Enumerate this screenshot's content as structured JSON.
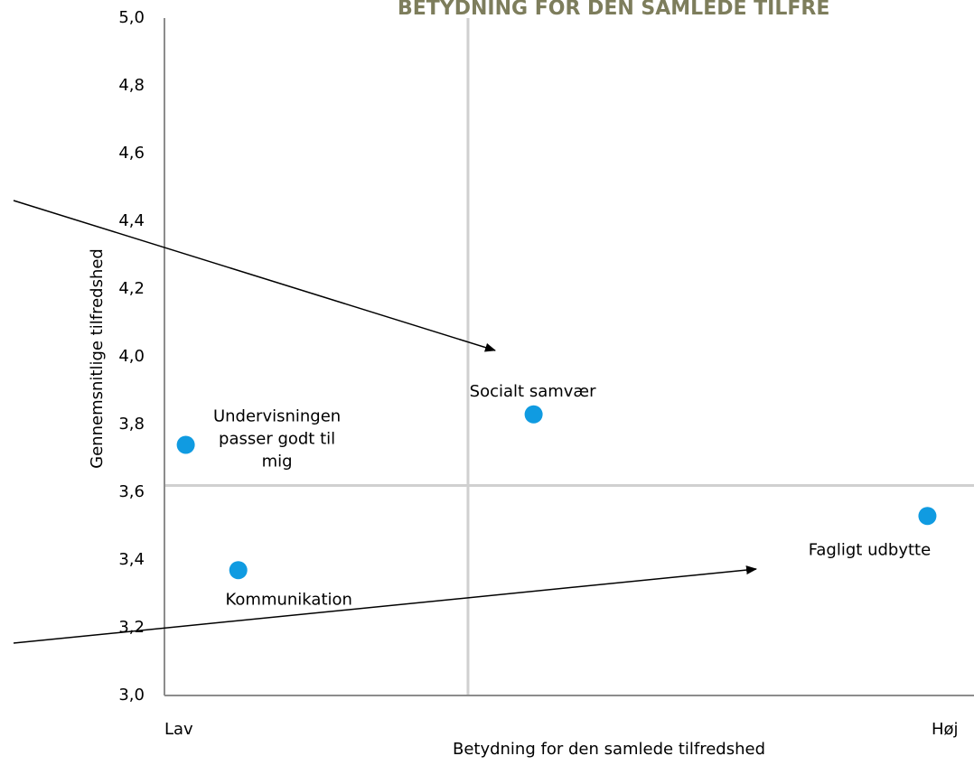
{
  "chart_data": {
    "type": "scatter",
    "title": "BETYDNING FOR DEN SAMLEDE TILFRE",
    "xlabel": "Betydning for den samlede tilfredshed",
    "ylabel": "Gennemsnitlige tilfredshed",
    "categories": [
      "Undervisningen passer godt til mig",
      "Socialt samvær",
      "Kommunikation",
      "Fagligt udbytte"
    ],
    "x": [
      0.026,
      0.45,
      0.09,
      0.93
    ],
    "values": [
      3.74,
      3.83,
      3.37,
      3.53
    ],
    "color": "#109be1",
    "xlim": [
      0,
      1
    ],
    "ylim": [
      3.0,
      5.0
    ],
    "xticks": [
      {
        "value": 0,
        "label": "Lav"
      },
      {
        "value": 0.935,
        "label": "Høj"
      }
    ],
    "yticks": [
      {
        "value": 3.0,
        "label": "3,0"
      },
      {
        "value": 3.2,
        "label": "3,2"
      },
      {
        "value": 3.4,
        "label": "3,4"
      },
      {
        "value": 3.6,
        "label": "3,6"
      },
      {
        "value": 3.8,
        "label": "3,8"
      },
      {
        "value": 4.0,
        "label": "4,0"
      },
      {
        "value": 4.2,
        "label": "4,2"
      },
      {
        "value": 4.4,
        "label": "4,4"
      },
      {
        "value": 4.6,
        "label": "4,6"
      },
      {
        "value": 4.8,
        "label": "4,8"
      },
      {
        "value": 5.0,
        "label": "5,0"
      }
    ],
    "vline": 0.37,
    "hline": 3.62
  }
}
